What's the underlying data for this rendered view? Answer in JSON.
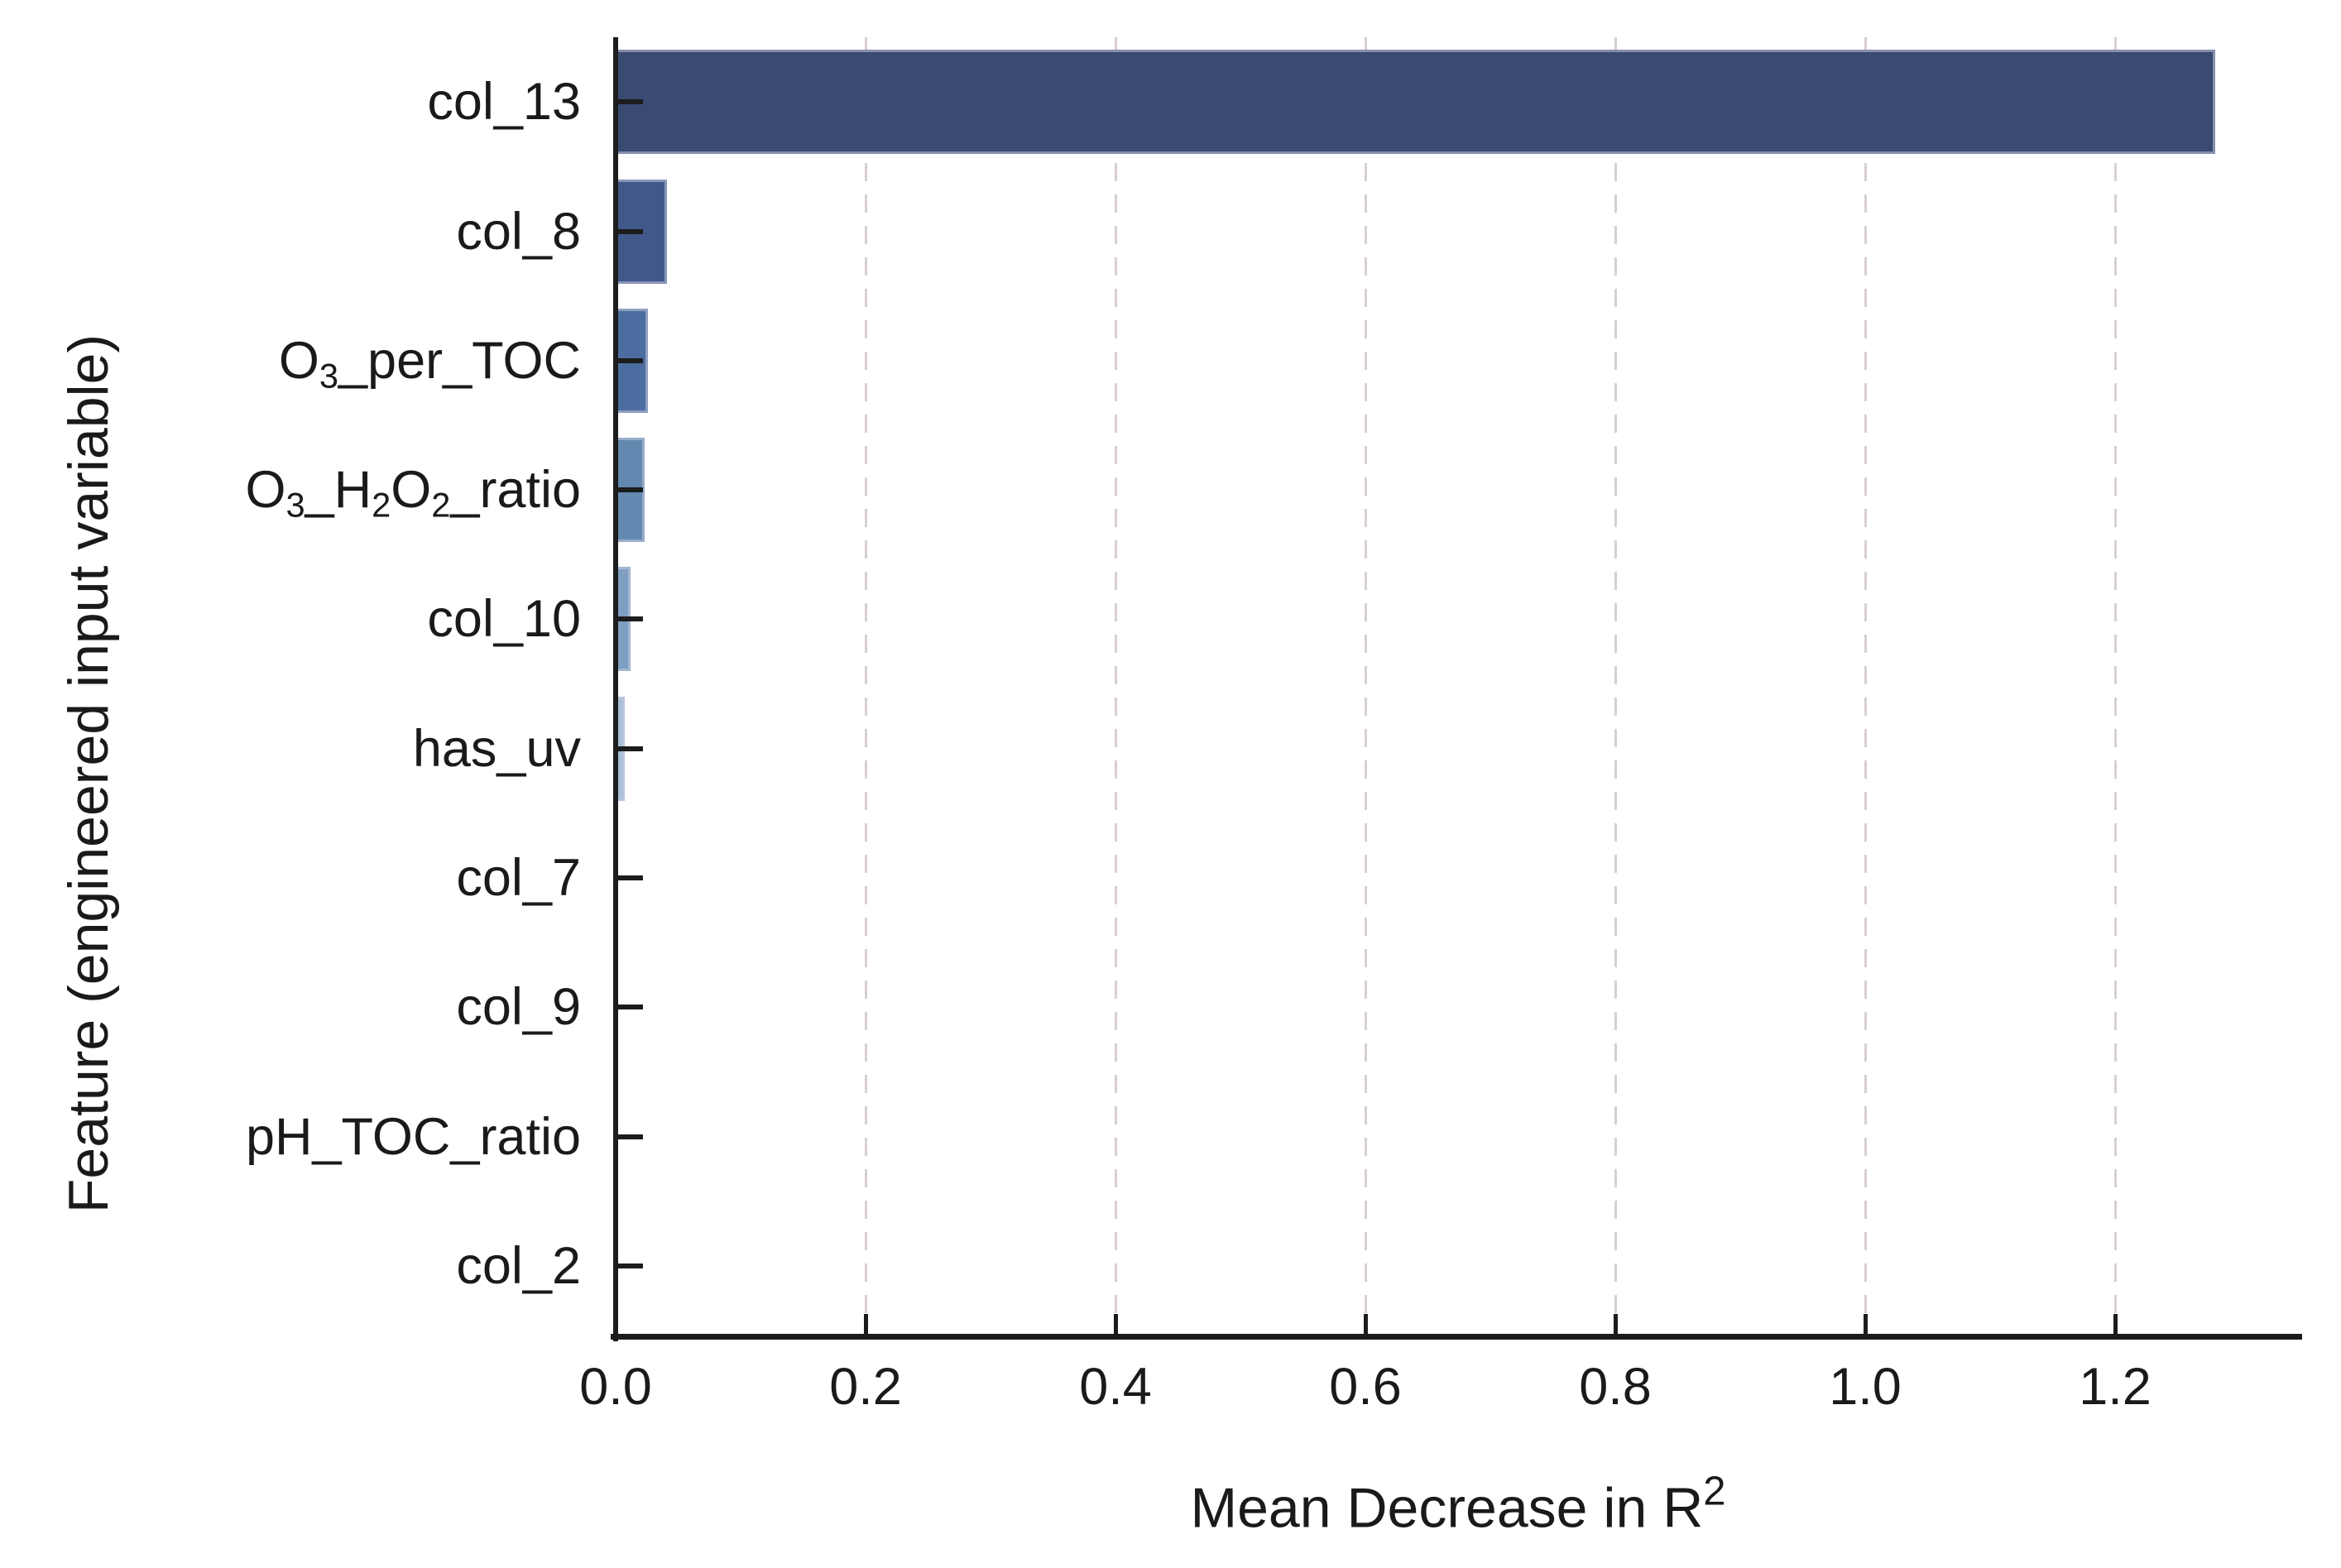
{
  "chart_data": {
    "type": "bar",
    "orientation": "horizontal",
    "title": "",
    "xlabel": "Mean Decrease in R²",
    "ylabel": "Feature (engineered input variable)",
    "categories": [
      "col_13",
      "col_8",
      "O₃_per_TOC",
      "O₃_H₂O₂_ratio",
      "col_10",
      "has_uv",
      "col_7",
      "col_9",
      "pH_TOC_ratio",
      "col_2"
    ],
    "values": [
      1.28,
      0.041,
      0.026,
      0.023,
      0.012,
      0.007,
      0.002,
      0.001,
      0.001,
      0.0005
    ],
    "bar_colors": [
      "#3a4a72",
      "#41588a",
      "#4c6da0",
      "#6389b0",
      "#7f9fc2",
      "#a6c0d8",
      "#c3d4e4",
      "#d4dfec",
      "#e0e8f1",
      "#ebf0f6"
    ],
    "xtick_labels": [
      "0.0",
      "0.2",
      "0.4",
      "0.6",
      "0.8",
      "1.0",
      "1.2"
    ],
    "xlim": [
      0,
      1.35
    ],
    "grid": "vertical-dashed",
    "legend": "none",
    "colors": {
      "grid": "#d8d0ce",
      "axis": "#1c1c1c",
      "text": "#1a1a1a",
      "background": "#ffffff"
    }
  }
}
